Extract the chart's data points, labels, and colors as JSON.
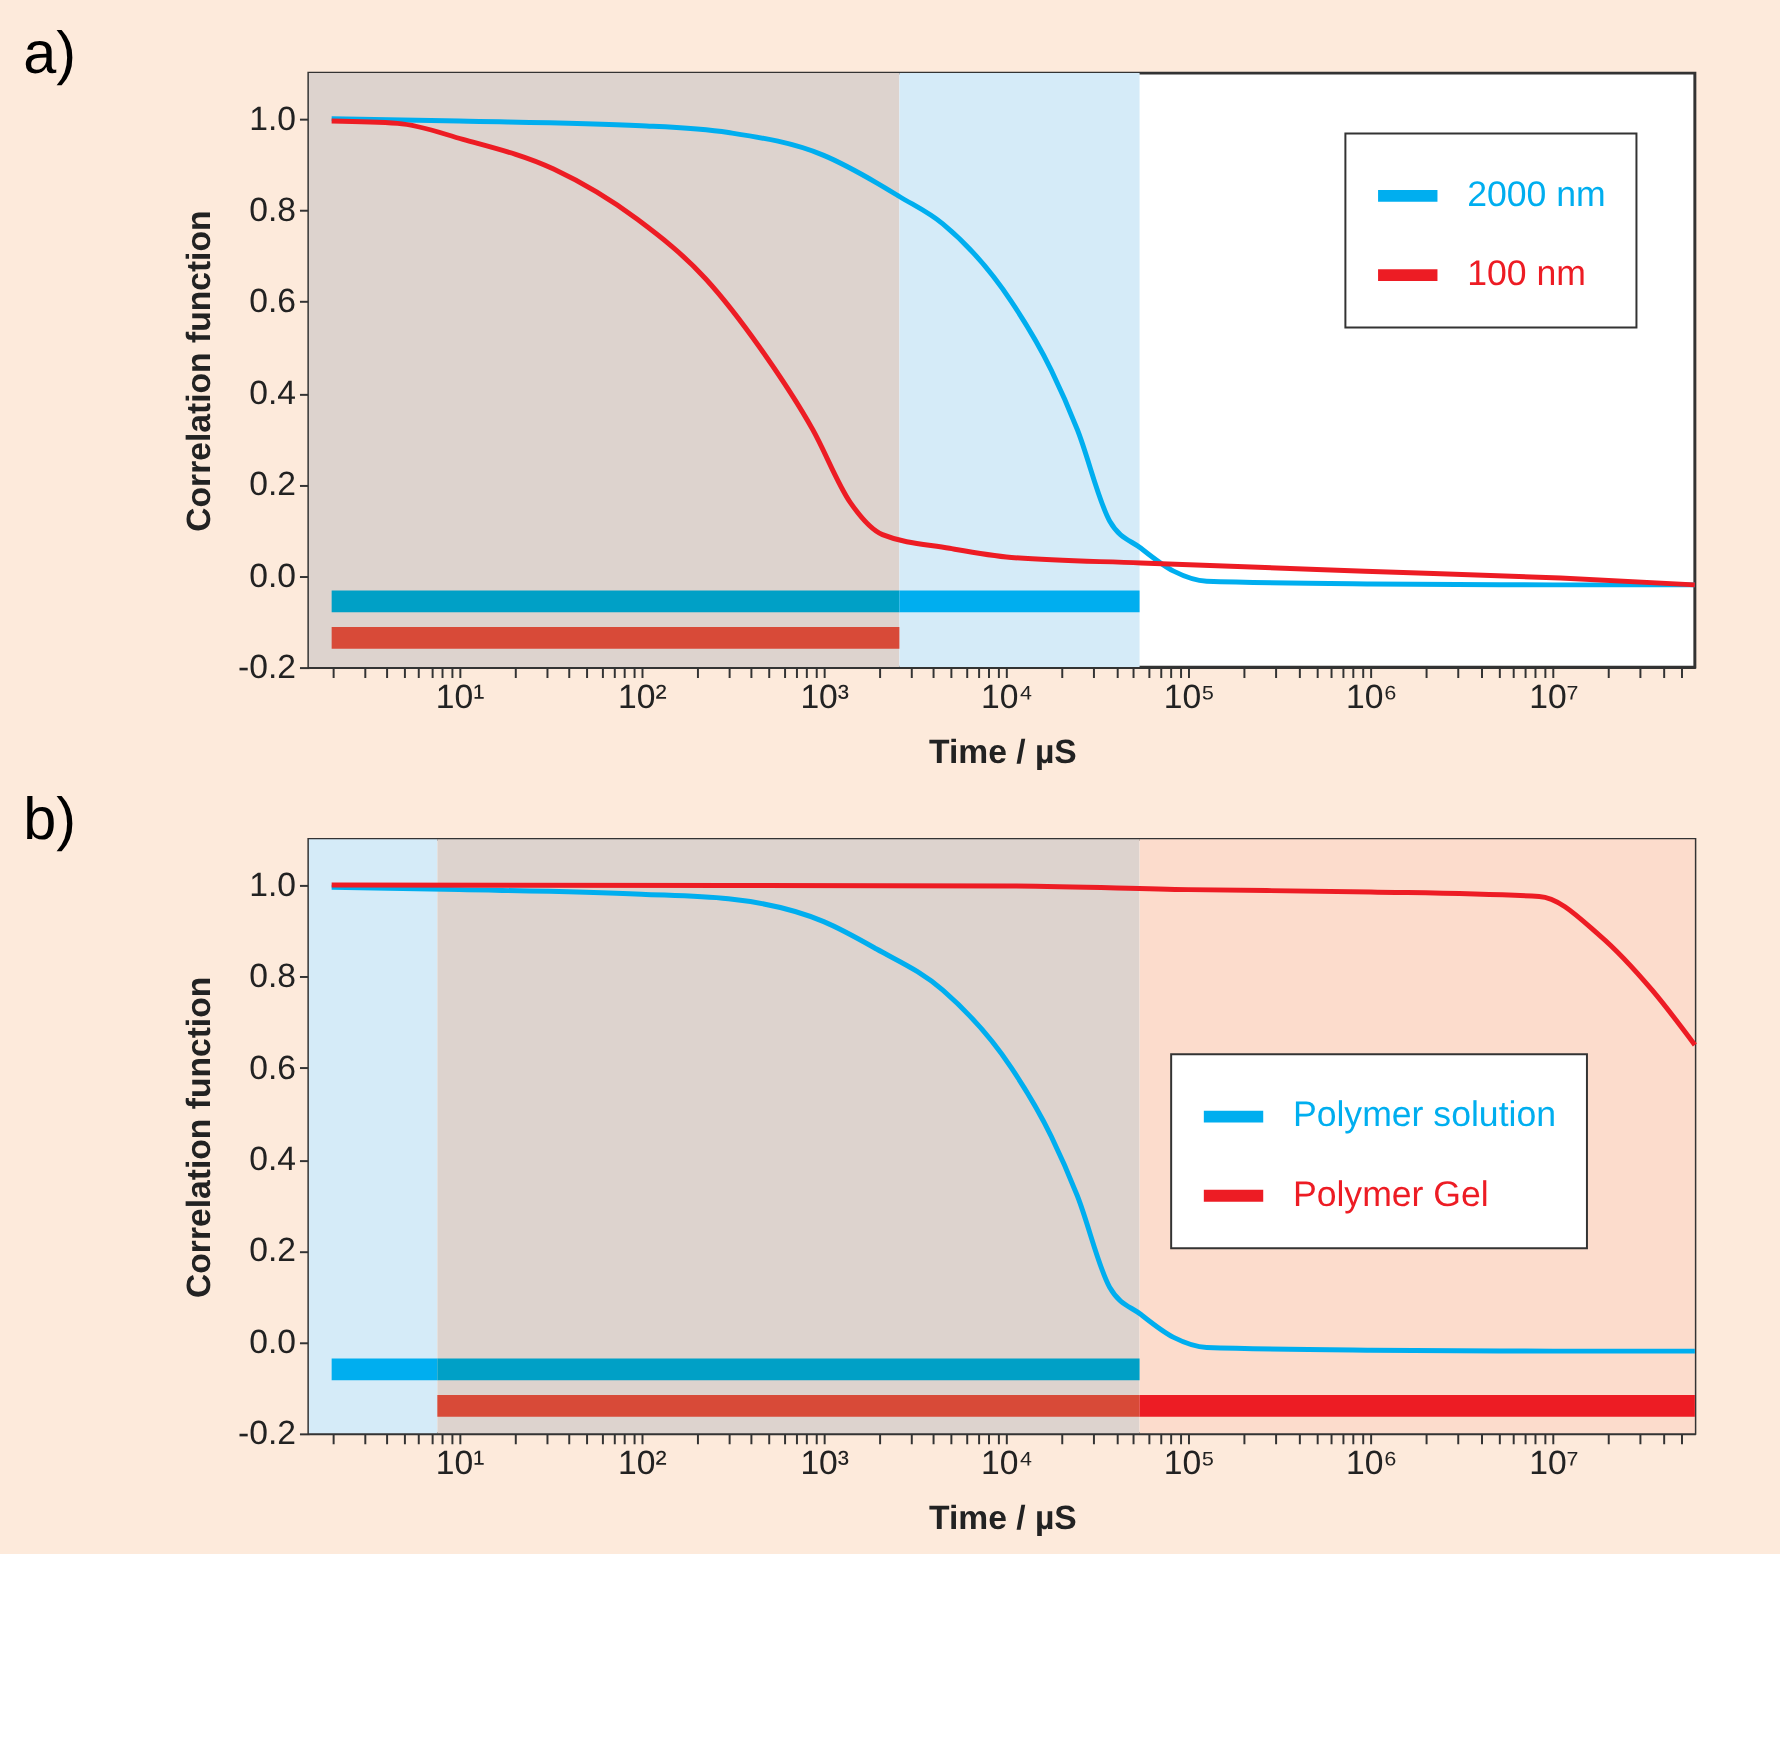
{
  "chart_data": [
    {
      "type": "line",
      "title": "a)",
      "xlabel": "Time / µS",
      "ylabel": "Correlation function",
      "log": "x",
      "legend": "top right",
      "xlim": [
        1.5,
        60000000
      ],
      "ylim": [
        -0.2,
        1.1
      ],
      "xticks": [
        {
          "value": 2,
          "label": null
        },
        {
          "value": 3,
          "label": null
        },
        {
          "value": 4,
          "label": null
        },
        {
          "value": 5,
          "label": null
        },
        {
          "value": 6,
          "label": null
        },
        {
          "value": 7,
          "label": null
        },
        {
          "value": 8,
          "label": null
        },
        {
          "value": 9,
          "label": null
        },
        {
          "value": 10,
          "label": "10¹"
        },
        {
          "value": 20,
          "label": null
        },
        {
          "value": 30,
          "label": null
        },
        {
          "value": 40,
          "label": null
        },
        {
          "value": 50,
          "label": null
        },
        {
          "value": 60,
          "label": null
        },
        {
          "value": 70,
          "label": null
        },
        {
          "value": 80,
          "label": null
        },
        {
          "value": 90,
          "label": null
        },
        {
          "value": 100,
          "label": "10²"
        },
        {
          "value": 200,
          "label": null
        },
        {
          "value": 300,
          "label": null
        },
        {
          "value": 400,
          "label": null
        },
        {
          "value": 500,
          "label": null
        },
        {
          "value": 600,
          "label": null
        },
        {
          "value": 700,
          "label": null
        },
        {
          "value": 800,
          "label": null
        },
        {
          "value": 900,
          "label": null
        },
        {
          "value": 1000,
          "label": "10³"
        },
        {
          "value": 2000,
          "label": null
        },
        {
          "value": 3000,
          "label": null
        },
        {
          "value": 4000,
          "label": null
        },
        {
          "value": 5000,
          "label": null
        },
        {
          "value": 6000,
          "label": null
        },
        {
          "value": 7000,
          "label": null
        },
        {
          "value": 8000,
          "label": null
        },
        {
          "value": 9000,
          "label": null
        },
        {
          "value": 10000,
          "label": "10⁴"
        },
        {
          "value": 20000,
          "label": null
        },
        {
          "value": 30000,
          "label": null
        },
        {
          "value": 40000,
          "label": null
        },
        {
          "value": 50000,
          "label": null
        },
        {
          "value": 60000,
          "label": null
        },
        {
          "value": 70000,
          "label": null
        },
        {
          "value": 80000,
          "label": null
        },
        {
          "value": 90000,
          "label": null
        },
        {
          "value": 100000,
          "label": "10⁵"
        },
        {
          "value": 200000,
          "label": null
        },
        {
          "value": 300000,
          "label": null
        },
        {
          "value": 400000,
          "label": null
        },
        {
          "value": 500000,
          "label": null
        },
        {
          "value": 600000,
          "label": null
        },
        {
          "value": 700000,
          "label": null
        },
        {
          "value": 800000,
          "label": null
        },
        {
          "value": 900000,
          "label": null
        },
        {
          "value": 1000000,
          "label": "10⁶"
        },
        {
          "value": 2000000,
          "label": null
        },
        {
          "value": 3000000,
          "label": null
        },
        {
          "value": 4000000,
          "label": null
        },
        {
          "value": 5000000,
          "label": null
        },
        {
          "value": 6000000,
          "label": null
        },
        {
          "value": 7000000,
          "label": null
        },
        {
          "value": 8000000,
          "label": null
        },
        {
          "value": 9000000,
          "label": null
        },
        {
          "value": 10000000,
          "label": "10⁷"
        },
        {
          "value": 20000000,
          "label": null
        },
        {
          "value": 30000000,
          "label": null
        },
        {
          "value": 40000000,
          "label": null
        },
        {
          "value": 50000000,
          "label": null
        }
      ],
      "yticks": [
        {
          "value": -0.2,
          "label": "-0.2"
        },
        {
          "value": 0,
          "label": "0.0"
        },
        {
          "value": 0.2,
          "label": "0.2"
        },
        {
          "value": 0.4,
          "label": "0.4"
        },
        {
          "value": 0.6,
          "label": "0.6"
        },
        {
          "value": 0.8,
          "label": "0.8"
        },
        {
          "value": 1,
          "label": "1.0"
        }
      ],
      "bands": [
        {
          "axis": "x",
          "from": 1.5,
          "to": 2600,
          "color": "#ddd3ce"
        },
        {
          "axis": "x",
          "from": 2600,
          "to": 54000,
          "color": "#d5ebf8"
        }
      ],
      "series": [
        {
          "name": "2000 nm",
          "color": "#00aeef",
          "x": [
            2,
            10,
            100,
            300,
            1000,
            1950,
            2600,
            4500,
            10700,
            17700,
            24600,
            37000,
            55000,
            83000,
            126000,
            1000000,
            10000000,
            60000000
          ],
          "values": [
            1.0,
            0.995,
            0.985,
            0.97,
            0.92,
            0.86,
            0.83,
            0.77,
            0.6,
            0.45,
            0.32,
            0.12,
            0.06,
            0.01,
            -0.012,
            -0.018,
            -0.02,
            -0.02
          ]
        },
        {
          "name": "100 nm",
          "color": "#ed1c24",
          "x": [
            2,
            4.6,
            10.5,
            33,
            95,
            225,
            445,
            870,
            1400,
            2100,
            4900,
            10700,
            55000,
            930000,
            11000000,
            60000000
          ],
          "values": [
            0.995,
            0.99,
            0.955,
            0.89,
            0.78,
            0.65,
            0.5,
            0.32,
            0.16,
            0.09,
            0.06,
            0.04,
            0.028,
            0.01,
            -0.005,
            -0.02
          ]
        },
        {
          "color": "#00a0c6",
          "x": [
            2,
            2600
          ],
          "values": [
            -0.056,
            -0.056
          ]
        },
        {
          "color": "#00aeef",
          "x": [
            2600,
            54000
          ],
          "values": [
            -0.056,
            -0.056
          ]
        },
        {
          "color": "#d84a38",
          "x": [
            2,
            2600
          ],
          "values": [
            -0.136,
            -0.136
          ]
        }
      ]
    },
    {
      "type": "line",
      "title": "b)",
      "xlabel": "Time / µS",
      "ylabel": "Correlation function",
      "log": "x",
      "legend": "right",
      "xlim": [
        1.5,
        60000000
      ],
      "ylim": [
        -0.2,
        1.1
      ],
      "xticks": [
        {
          "value": 2,
          "label": null
        },
        {
          "value": 3,
          "label": null
        },
        {
          "value": 4,
          "label": null
        },
        {
          "value": 5,
          "label": null
        },
        {
          "value": 6,
          "label": null
        },
        {
          "value": 7,
          "label": null
        },
        {
          "value": 8,
          "label": null
        },
        {
          "value": 9,
          "label": null
        },
        {
          "value": 10,
          "label": "10¹"
        },
        {
          "value": 20,
          "label": null
        },
        {
          "value": 30,
          "label": null
        },
        {
          "value": 40,
          "label": null
        },
        {
          "value": 50,
          "label": null
        },
        {
          "value": 60,
          "label": null
        },
        {
          "value": 70,
          "label": null
        },
        {
          "value": 80,
          "label": null
        },
        {
          "value": 90,
          "label": null
        },
        {
          "value": 100,
          "label": "10²"
        },
        {
          "value": 200,
          "label": null
        },
        {
          "value": 300,
          "label": null
        },
        {
          "value": 400,
          "label": null
        },
        {
          "value": 500,
          "label": null
        },
        {
          "value": 600,
          "label": null
        },
        {
          "value": 700,
          "label": null
        },
        {
          "value": 800,
          "label": null
        },
        {
          "value": 900,
          "label": null
        },
        {
          "value": 1000,
          "label": "10³"
        },
        {
          "value": 2000,
          "label": null
        },
        {
          "value": 3000,
          "label": null
        },
        {
          "value": 4000,
          "label": null
        },
        {
          "value": 5000,
          "label": null
        },
        {
          "value": 6000,
          "label": null
        },
        {
          "value": 7000,
          "label": null
        },
        {
          "value": 8000,
          "label": null
        },
        {
          "value": 9000,
          "label": null
        },
        {
          "value": 10000,
          "label": "10⁴"
        },
        {
          "value": 20000,
          "label": null
        },
        {
          "value": 30000,
          "label": null
        },
        {
          "value": 40000,
          "label": null
        },
        {
          "value": 50000,
          "label": null
        },
        {
          "value": 60000,
          "label": null
        },
        {
          "value": 70000,
          "label": null
        },
        {
          "value": 80000,
          "label": null
        },
        {
          "value": 90000,
          "label": null
        },
        {
          "value": 100000,
          "label": "10⁵"
        },
        {
          "value": 200000,
          "label": null
        },
        {
          "value": 300000,
          "label": null
        },
        {
          "value": 400000,
          "label": null
        },
        {
          "value": 500000,
          "label": null
        },
        {
          "value": 600000,
          "label": null
        },
        {
          "value": 700000,
          "label": null
        },
        {
          "value": 800000,
          "label": null
        },
        {
          "value": 900000,
          "label": null
        },
        {
          "value": 1000000,
          "label": "10⁶"
        },
        {
          "value": 2000000,
          "label": null
        },
        {
          "value": 3000000,
          "label": null
        },
        {
          "value": 4000000,
          "label": null
        },
        {
          "value": 5000000,
          "label": null
        },
        {
          "value": 6000000,
          "label": null
        },
        {
          "value": 7000000,
          "label": null
        },
        {
          "value": 8000000,
          "label": null
        },
        {
          "value": 9000000,
          "label": null
        },
        {
          "value": 10000000,
          "label": "10⁷"
        },
        {
          "value": 20000000,
          "label": null
        },
        {
          "value": 30000000,
          "label": null
        },
        {
          "value": 40000000,
          "label": null
        },
        {
          "value": 50000000,
          "label": null
        }
      ],
      "yticks": [
        {
          "value": -0.2,
          "label": "-0.2"
        },
        {
          "value": 0,
          "label": "0.0"
        },
        {
          "value": 0.2,
          "label": "0.2"
        },
        {
          "value": 0.4,
          "label": "0.4"
        },
        {
          "value": 0.6,
          "label": "0.6"
        },
        {
          "value": 0.8,
          "label": "0.8"
        },
        {
          "value": 1,
          "label": "1.0"
        }
      ],
      "bands": [
        {
          "axis": "x",
          "from": 1.5,
          "to": 7.6,
          "color": "#d5ebf8"
        },
        {
          "axis": "x",
          "from": 7.6,
          "to": 54000,
          "color": "#ddd3ce"
        },
        {
          "axis": "x",
          "from": 54000,
          "to": 60000000,
          "color": "#fcdccc"
        }
      ],
      "series": [
        {
          "name": "Polymer solution",
          "color": "#00aeef",
          "x": [
            2,
            10,
            100,
            300,
            1000,
            1950,
            4500,
            10700,
            17700,
            24600,
            37000,
            55000,
            83000,
            126000,
            1000000,
            10000000,
            60000000
          ],
          "values": [
            0.995,
            0.99,
            0.98,
            0.97,
            0.92,
            0.86,
            0.77,
            0.6,
            0.45,
            0.32,
            0.12,
            0.06,
            0.01,
            -0.012,
            -0.018,
            -0.02,
            -0.02
          ]
        },
        {
          "name": "Polymer Gel",
          "color": "#ed1c24",
          "x": [
            2,
            10000,
            100000,
            1000000,
            8400000,
            18000000,
            35000000,
            60000000
          ],
          "values": [
            1.0,
            0.998,
            0.99,
            0.985,
            0.975,
            0.89,
            0.77,
            0.65
          ]
        },
        {
          "color": "#00aeef",
          "x": [
            2,
            7.6
          ],
          "values": [
            -0.06,
            -0.06
          ]
        },
        {
          "color": "#00a0c6",
          "x": [
            7.6,
            54000
          ],
          "values": [
            -0.06,
            -0.06
          ]
        },
        {
          "color": "#d84a38",
          "x": [
            7.6,
            54000
          ],
          "values": [
            -0.14,
            -0.14
          ]
        },
        {
          "color": "#ed1c24",
          "x": [
            54000,
            60000000
          ],
          "values": [
            -0.14,
            -0.14
          ]
        }
      ]
    }
  ]
}
